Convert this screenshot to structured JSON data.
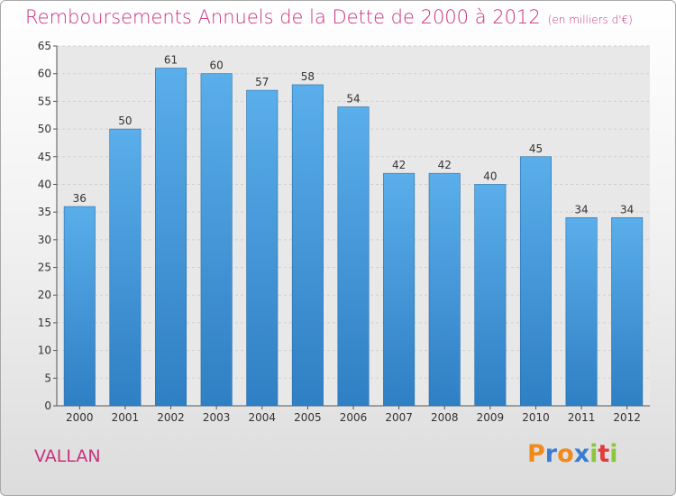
{
  "chart_data": {
    "type": "bar",
    "title": "Remboursements Annuels de la Dette de 2000 à 2012",
    "subtitle": "(en milliers d'€)",
    "categories": [
      "2000",
      "2001",
      "2002",
      "2003",
      "2004",
      "2005",
      "2006",
      "2007",
      "2008",
      "2009",
      "2010",
      "2011",
      "2012"
    ],
    "values": [
      36,
      50,
      61,
      60,
      57,
      58,
      54,
      42,
      42,
      40,
      45,
      34,
      34
    ],
    "ylim": [
      0,
      65
    ],
    "ytick_step": 5,
    "grid": true,
    "bar_color": "#4a9fe0"
  },
  "location": "VALLAN",
  "brand": {
    "letters": [
      "P",
      "r",
      "o",
      "x",
      "i",
      "t",
      "i"
    ],
    "colors": [
      "#f08a1c",
      "#3a7dd0",
      "#f08a1c",
      "#3a7dd0",
      "#8cc63f",
      "#e23b3b",
      "#8cc63f"
    ]
  }
}
